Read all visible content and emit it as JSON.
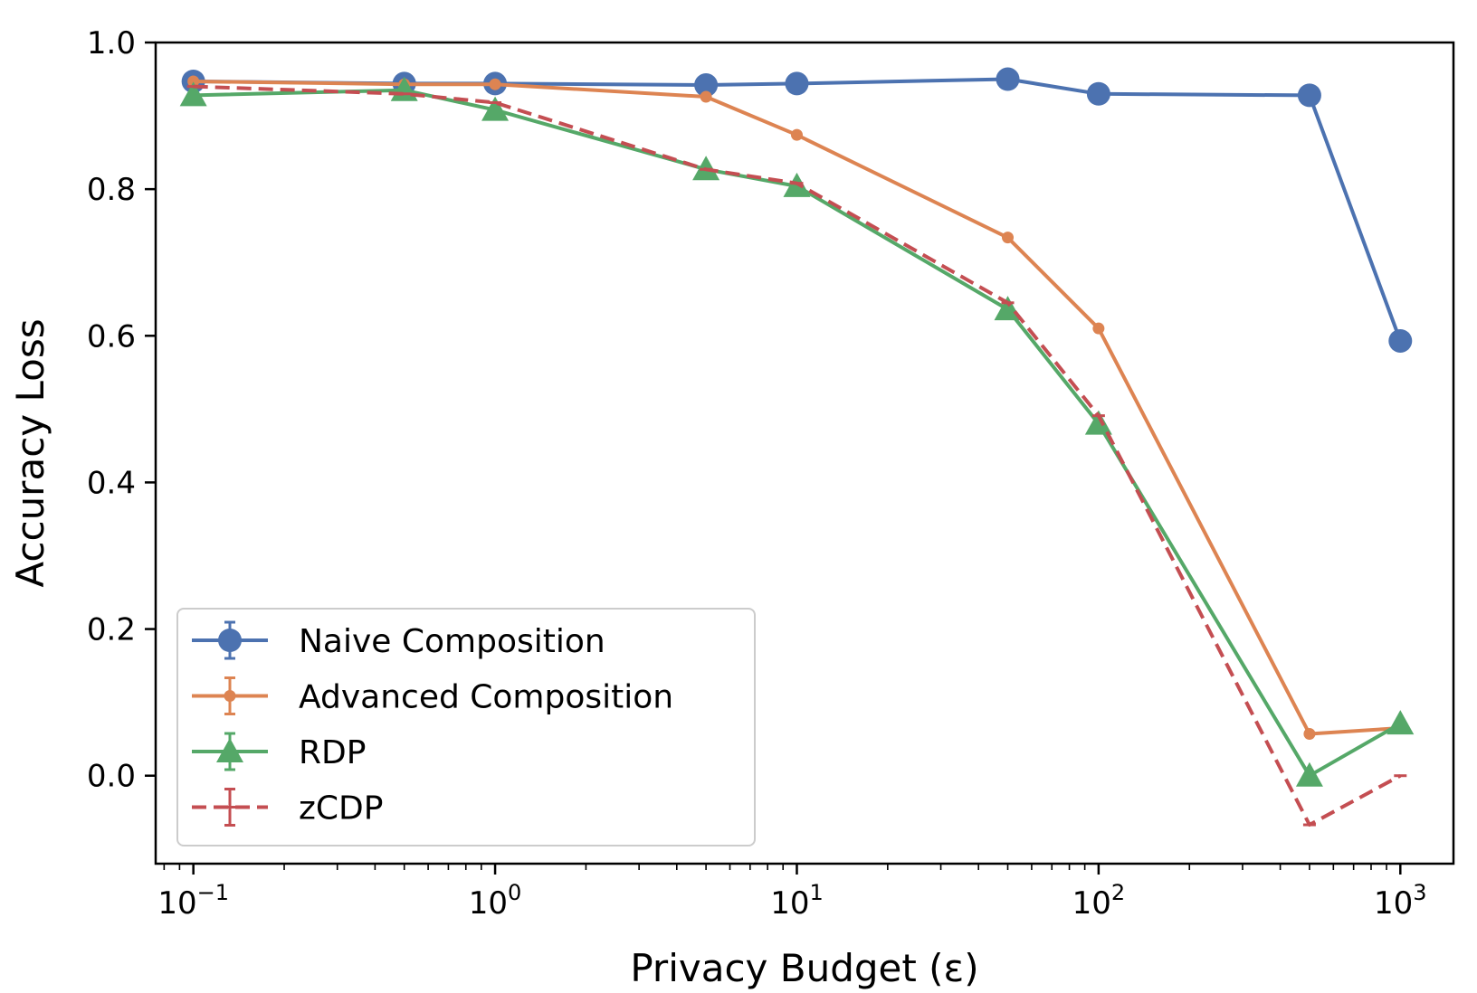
{
  "chart_data": {
    "type": "line",
    "xlabel": "Privacy Budget (ε)",
    "ylabel": "Accuracy Loss",
    "xscale": "log",
    "xlim": [
      0.075,
      1500
    ],
    "ylim": [
      -0.12,
      1.0
    ],
    "x_ticks": [
      {
        "value": 0.1,
        "base": "10",
        "exp": "−1"
      },
      {
        "value": 1,
        "base": "10",
        "exp": "0"
      },
      {
        "value": 10,
        "base": "10",
        "exp": "1"
      },
      {
        "value": 100,
        "base": "10",
        "exp": "2"
      },
      {
        "value": 1000,
        "base": "10",
        "exp": "3"
      }
    ],
    "y_ticks": [
      {
        "value": 0.0,
        "label": "0.0"
      },
      {
        "value": 0.2,
        "label": "0.2"
      },
      {
        "value": 0.4,
        "label": "0.4"
      },
      {
        "value": 0.6,
        "label": "0.6"
      },
      {
        "value": 0.8,
        "label": "0.8"
      },
      {
        "value": 1.0,
        "label": "1.0"
      }
    ],
    "x": [
      0.1,
      0.5,
      1,
      5,
      10,
      50,
      100,
      500,
      1000
    ],
    "series": [
      {
        "name": "Naive Composition",
        "color": "#4c72b0",
        "marker": "circle-large",
        "dash": "solid",
        "values": [
          0.947,
          0.944,
          0.944,
          0.942,
          0.944,
          0.95,
          0.93,
          0.928,
          0.593
        ]
      },
      {
        "name": "Advanced Composition",
        "color": "#dd8452",
        "marker": "circle-small",
        "dash": "solid",
        "values": [
          0.947,
          0.943,
          0.943,
          0.926,
          0.874,
          0.734,
          0.61,
          0.057,
          0.065
        ]
      },
      {
        "name": "RDP",
        "color": "#55a868",
        "marker": "triangle",
        "dash": "solid",
        "values": [
          0.928,
          0.935,
          0.908,
          0.827,
          0.804,
          0.636,
          0.48,
          0.0,
          0.071
        ]
      },
      {
        "name": "zCDP",
        "color": "#c44e52",
        "marker": "tick",
        "dash": "dashed",
        "values": [
          0.94,
          0.93,
          0.918,
          0.827,
          0.808,
          0.645,
          0.491,
          -0.067,
          0.0
        ]
      }
    ],
    "grid": false,
    "legend_position": "lower-left"
  }
}
